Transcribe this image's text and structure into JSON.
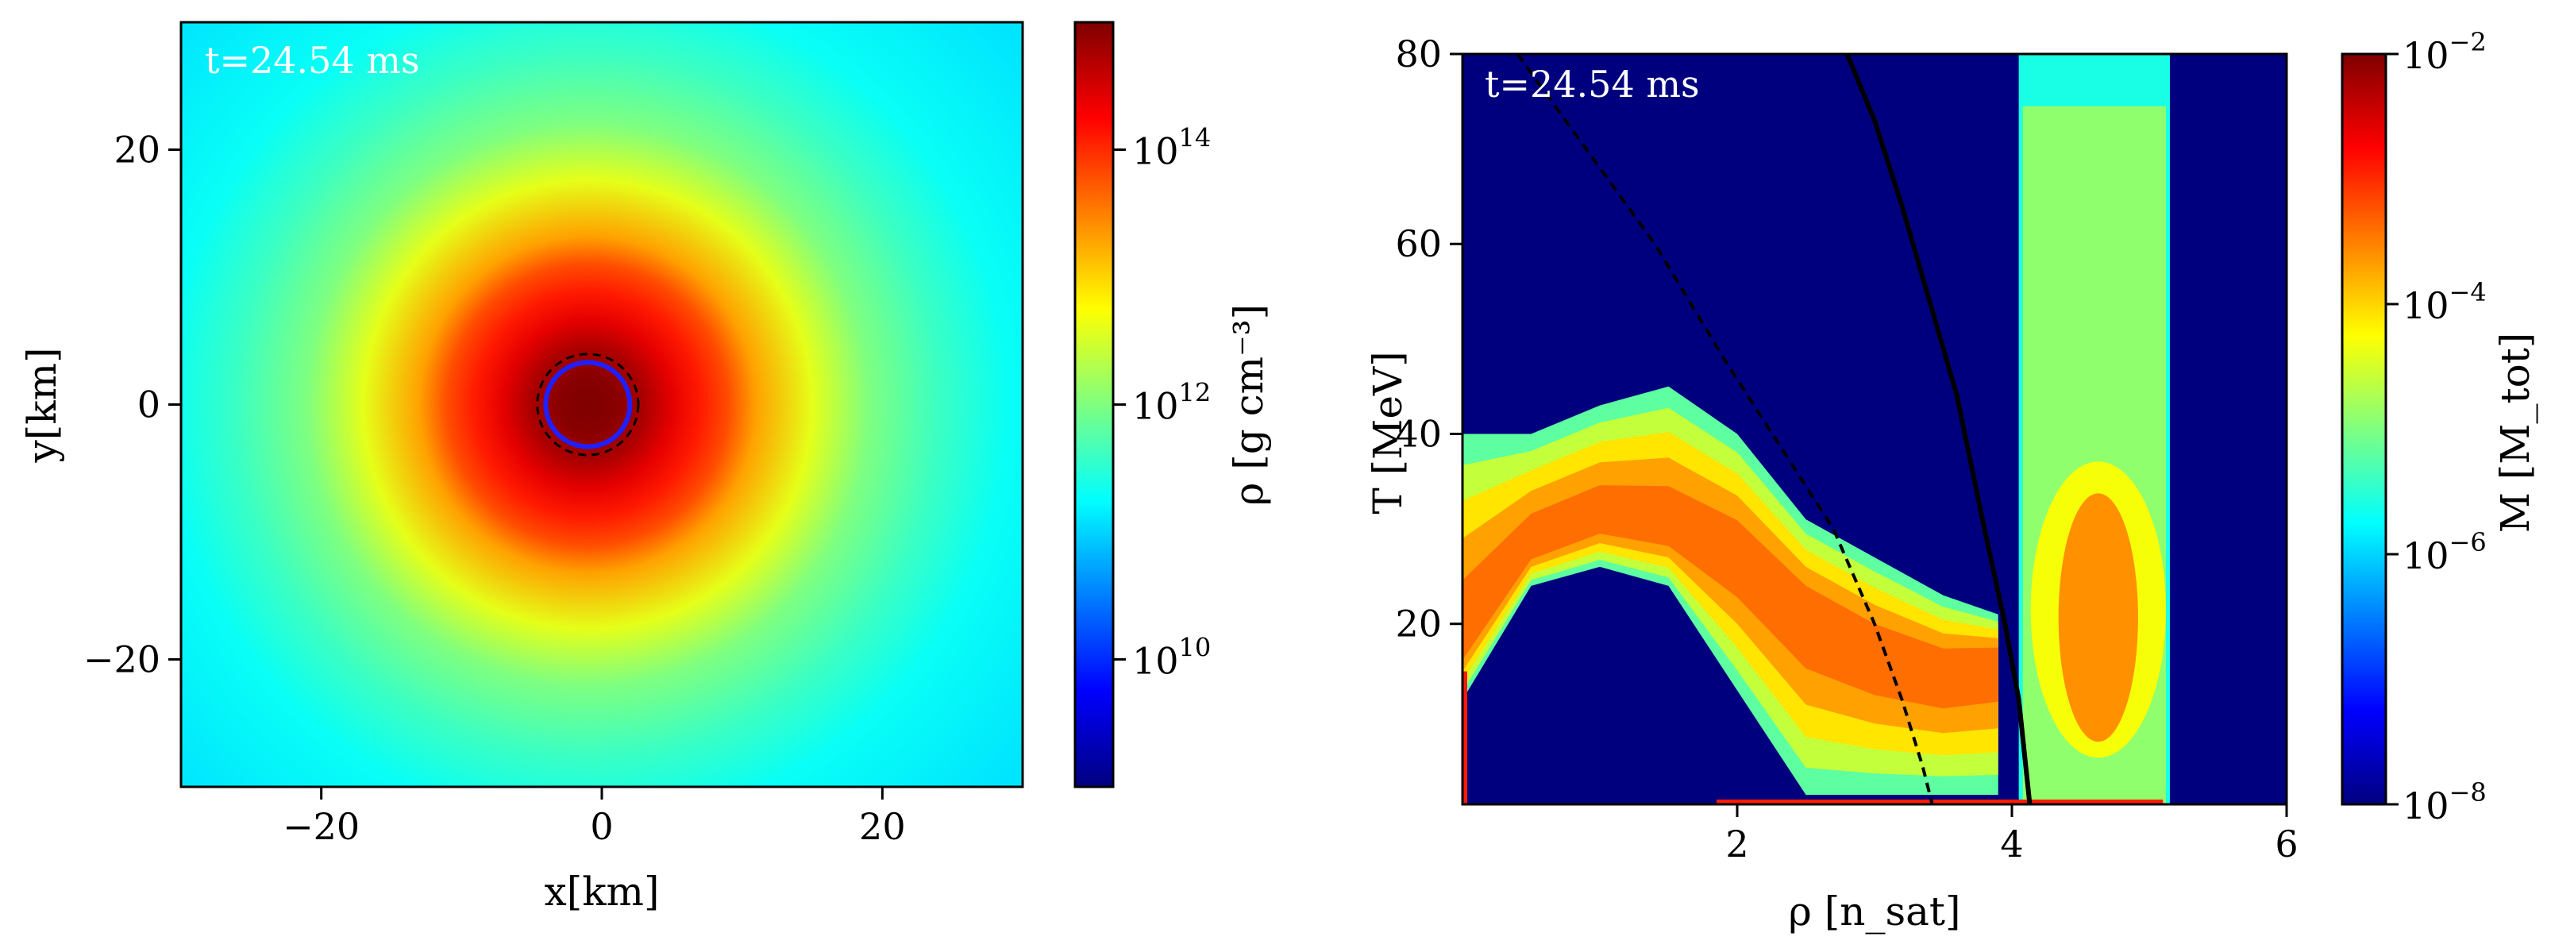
{
  "figure": {
    "left_panel": {
      "time_label": "t=24.54 ms",
      "xlabel": "x[km]",
      "ylabel": "y[km]",
      "cbar_label": "ρ [g cm⁻³]"
    },
    "right_panel": {
      "time_label": "t=24.54 ms",
      "xlabel": "ρ [n_sat]",
      "ylabel": "T [MeV]",
      "cbar_label": "M [M_tot]"
    }
  },
  "colors": {
    "jet": [
      "#00007f",
      "#0000ff",
      "#007fff",
      "#00ffff",
      "#7fff7f",
      "#ffff00",
      "#ff7f00",
      "#ff0000",
      "#7f0000"
    ],
    "panel_background_right": "#00007f",
    "contour_solid": "#000000",
    "contour_dashed": "#000000",
    "core_circle": "#2020ff"
  },
  "chart_data": [
    {
      "type": "heatmap",
      "title": "",
      "time_label": "t=24.54 ms",
      "xlabel": "x[km]",
      "ylabel": "y[km]",
      "xlim": [
        -30,
        30
      ],
      "ylim": [
        -30,
        30
      ],
      "xticks": [
        -20,
        0,
        20
      ],
      "yticks": [
        -20,
        0,
        20
      ],
      "xtick_labels": [
        "−20",
        "0",
        "20"
      ],
      "ytick_labels": [
        "−20",
        "0",
        "20"
      ],
      "colorbar": {
        "label": "ρ [g cm⁻³]",
        "scale": "log",
        "range": [
          1000000000.0,
          1000000000000000.0
        ],
        "ticks": [
          10000000000.0,
          1000000000000.0,
          100000000000000.0
        ],
        "tick_labels": [
          {
            "base": "10",
            "exp": "10"
          },
          {
            "base": "10",
            "exp": "12"
          },
          {
            "base": "10",
            "exp": "14"
          }
        ]
      },
      "density_profile": {
        "radius_km": [
          0,
          2,
          4,
          6,
          8,
          10,
          12,
          16,
          20,
          25,
          30,
          40
        ],
        "log10_rho": [
          15.0,
          14.95,
          14.75,
          14.4,
          14.1,
          13.8,
          13.3,
          12.6,
          12.0,
          11.6,
          11.3,
          11.1
        ]
      },
      "overlays": [
        {
          "name": "core-circle",
          "center_km": [
            -1,
            0
          ],
          "radius_km": 3.0,
          "style": "solid",
          "color": "blue"
        },
        {
          "name": "dashed-ring",
          "center_km": [
            -1,
            0
          ],
          "radius_km": 3.6,
          "style": "dashed",
          "color": "black"
        }
      ]
    },
    {
      "type": "heatmap",
      "title": "",
      "time_label": "t=24.54 ms",
      "xlabel": "ρ [n_sat]",
      "ylabel": "T [MeV]",
      "xlim": [
        0,
        6
      ],
      "ylim": [
        1,
        80
      ],
      "xticks": [
        2,
        4,
        6
      ],
      "yticks": [
        20,
        40,
        60,
        80
      ],
      "xtick_labels": [
        "2",
        "4",
        "6"
      ],
      "ytick_labels": [
        "20",
        "40",
        "60",
        "80"
      ],
      "colorbar": {
        "label": "M [M_tot]",
        "scale": "log",
        "range": [
          1e-08,
          0.01
        ],
        "ticks": [
          1e-08,
          1e-06,
          0.0001,
          0.01
        ],
        "tick_labels": [
          {
            "base": "10",
            "exp": "−8"
          },
          {
            "base": "10",
            "exp": "−6"
          },
          {
            "base": "10",
            "exp": "−4"
          },
          {
            "base": "10",
            "exp": "−2"
          }
        ]
      },
      "regions": [
        {
          "name": "hadronic-branch",
          "rho": [
            0,
            0.5,
            1.0,
            1.5,
            2.0,
            2.5,
            3.0,
            3.5,
            3.9
          ],
          "T_center": [
            18,
            28,
            31,
            30,
            27,
            21,
            17,
            15,
            16
          ],
          "T_upper": [
            40,
            40,
            43,
            45,
            40,
            31,
            27,
            23,
            21
          ],
          "T_lower": [
            12,
            24,
            26,
            24,
            13,
            2,
            2,
            2,
            2
          ],
          "log10_M_peak": -3.3
        },
        {
          "name": "high-density-column",
          "rho_range": [
            4.05,
            5.15
          ],
          "T_range": [
            1,
            80
          ],
          "hot_T_range": [
            8,
            35
          ],
          "log10_M_peak": -3.6
        }
      ],
      "lines": [
        {
          "name": "dashed-boundary",
          "style": "dashed",
          "rho": [
            0.4,
            0.9,
            1.4,
            1.9,
            2.3,
            2.7,
            3.0,
            3.2,
            3.35,
            3.42
          ],
          "T": [
            80,
            70,
            60,
            48,
            39,
            30,
            20,
            12,
            5,
            1
          ]
        },
        {
          "name": "solid-boundary",
          "style": "solid",
          "rho": [
            2.8,
            3.0,
            3.2,
            3.4,
            3.6,
            3.8,
            3.95,
            4.05,
            4.13
          ],
          "T": [
            80,
            73,
            64,
            54,
            44,
            30,
            20,
            12,
            1
          ]
        }
      ]
    }
  ]
}
